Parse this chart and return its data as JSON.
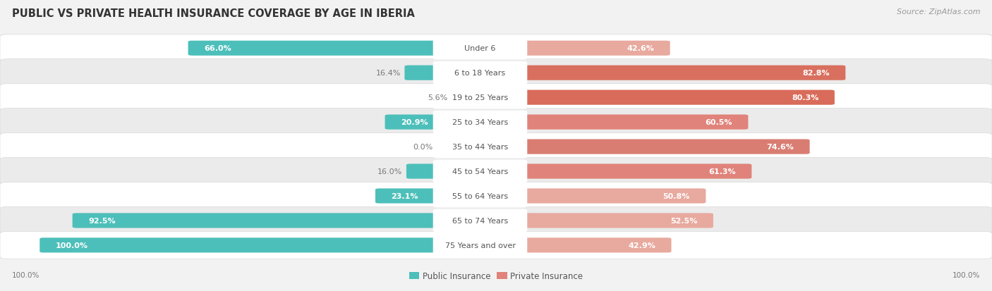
{
  "title": "PUBLIC VS PRIVATE HEALTH INSURANCE COVERAGE BY AGE IN IBERIA",
  "source": "Source: ZipAtlas.com",
  "categories": [
    "Under 6",
    "6 to 18 Years",
    "19 to 25 Years",
    "25 to 34 Years",
    "35 to 44 Years",
    "45 to 54 Years",
    "55 to 64 Years",
    "65 to 74 Years",
    "75 Years and over"
  ],
  "public_values": [
    66.0,
    16.4,
    5.6,
    20.9,
    0.0,
    16.0,
    23.1,
    92.5,
    100.0
  ],
  "private_values": [
    42.6,
    82.8,
    80.3,
    60.5,
    74.6,
    61.3,
    50.8,
    52.5,
    42.9
  ],
  "public_color": "#4dbfba",
  "private_colors": [
    "#e8a99e",
    "#d9705f",
    "#d96b5a",
    "#e0837a",
    "#d97d72",
    "#e0837a",
    "#e8a99e",
    "#e8a99e",
    "#e8a99e"
  ],
  "background_color": "#f2f2f2",
  "row_bg_colors": [
    "#ffffff",
    "#ebebeb",
    "#ffffff",
    "#ebebeb",
    "#ffffff",
    "#ebebeb",
    "#ffffff",
    "#ebebeb",
    "#ffffff"
  ],
  "row_border_color": "#d8d8d8",
  "center_label_bg": "#ffffff",
  "center_label_color": "#555555",
  "value_label_inside_color": "#ffffff",
  "value_label_outside_color": "#777777",
  "max_val": 100.0,
  "label_fontsize": 8.0,
  "title_fontsize": 10.5,
  "legend_fontsize": 8.5,
  "source_fontsize": 8.0
}
